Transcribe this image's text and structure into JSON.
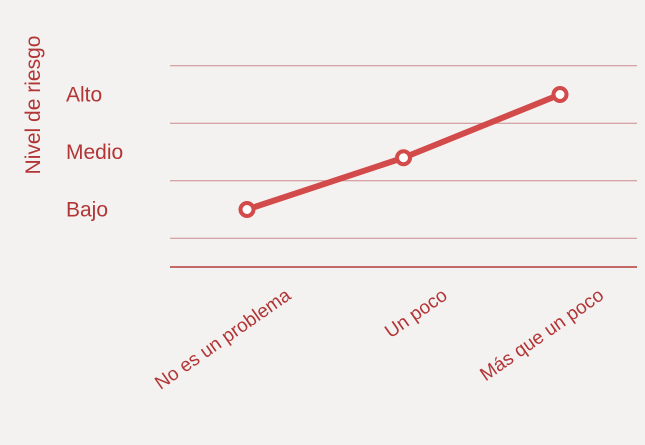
{
  "chart_data": {
    "type": "line",
    "categories": [
      "No es un problema",
      "Un poco",
      "Más que un poco"
    ],
    "values": [
      1,
      1.9,
      3
    ],
    "ylabel": "Nivel de riesgo",
    "xlabel": "",
    "y_ticks": [
      {
        "value": 1,
        "label": "Bajo"
      },
      {
        "value": 2,
        "label": "Medio"
      },
      {
        "value": 3,
        "label": "Alto"
      }
    ],
    "ylim": [
      0,
      3.5
    ],
    "grid": true,
    "colors": {
      "line": "#d24a4a",
      "marker_fill": "#ffffff",
      "grid": "#c98c8c",
      "axis": "#b53a3a",
      "text": "#b23535",
      "background": "#f4f2f1"
    }
  }
}
